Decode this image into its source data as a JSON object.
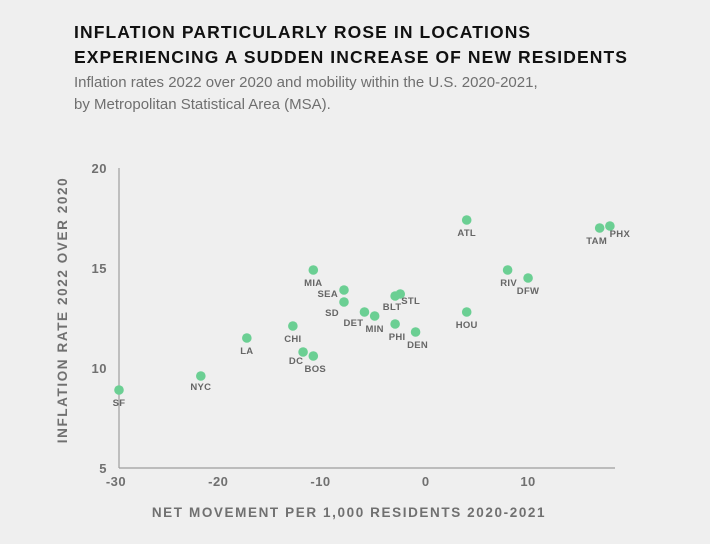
{
  "title_line1": "INFLATION PARTICULARLY ROSE IN LOCATIONS",
  "title_line2": "EXPERIENCING A SUDDEN INCREASE OF NEW RESIDENTS",
  "subtitle_line1": "Inflation rates 2022 over 2020 and mobility within the U.S. 2020-2021,",
  "subtitle_line2": "by Metropolitan Statistical Area (MSA).",
  "colors": {
    "point": "#6bcf93",
    "axis": "#9e9e9e",
    "text": "#707070"
  },
  "chart_data": {
    "type": "scatter",
    "xlabel": "NET MOVEMENT PER 1,000 RESIDENTS 2020-2021",
    "ylabel": "INFLATION RATE 2022 OVER 2020",
    "xlim": [
      -30,
      18.5
    ],
    "ylim": [
      5,
      20
    ],
    "xticks": [
      -30,
      -20,
      -10,
      0,
      10
    ],
    "yticks": [
      5,
      10,
      15,
      20
    ],
    "points": [
      {
        "label": "SF",
        "x": -30,
        "y": 8.9
      },
      {
        "label": "NYC",
        "x": -22,
        "y": 9.6
      },
      {
        "label": "LA",
        "x": -17.5,
        "y": 11.5
      },
      {
        "label": "CHI",
        "x": -13,
        "y": 12.1
      },
      {
        "label": "DC",
        "x": -12,
        "y": 10.8
      },
      {
        "label": "BOS",
        "x": -11,
        "y": 10.6
      },
      {
        "label": "MIA",
        "x": -11,
        "y": 14.9
      },
      {
        "label": "SEA",
        "x": -8,
        "y": 13.9
      },
      {
        "label": "SD",
        "x": -8,
        "y": 13.3
      },
      {
        "label": "DET",
        "x": -6,
        "y": 12.8
      },
      {
        "label": "MIN",
        "x": -5,
        "y": 12.6
      },
      {
        "label": "BLT",
        "x": -3,
        "y": 13.6
      },
      {
        "label": "STL",
        "x": -2.5,
        "y": 13.7
      },
      {
        "label": "PHI",
        "x": -3,
        "y": 12.2
      },
      {
        "label": "DEN",
        "x": -1,
        "y": 11.8
      },
      {
        "label": "ATL",
        "x": 4,
        "y": 17.4
      },
      {
        "label": "HOU",
        "x": 4,
        "y": 12.8
      },
      {
        "label": "RIV",
        "x": 8,
        "y": 14.9
      },
      {
        "label": "DFW",
        "x": 10,
        "y": 14.5
      },
      {
        "label": "TAM",
        "x": 17,
        "y": 17.0
      },
      {
        "label": "PHX",
        "x": 18,
        "y": 17.1
      }
    ]
  }
}
